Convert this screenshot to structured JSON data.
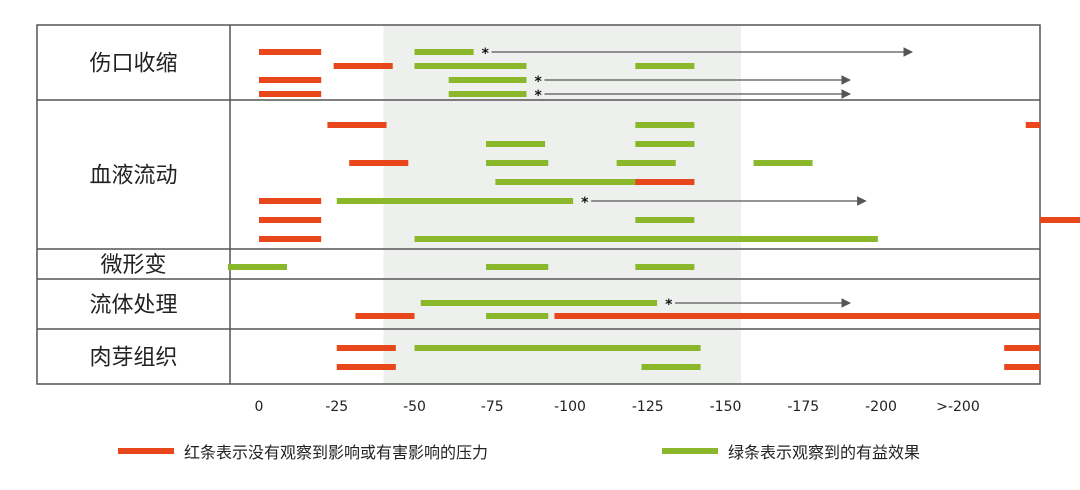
{
  "chart_data": {
    "type": "range-bar",
    "x_axis": {
      "tick_values": [
        0,
        -25,
        -50,
        -75,
        -100,
        -125,
        -150,
        -175,
        -200,
        -225
      ],
      "tick_labels": [
        "0",
        "-25",
        "-50",
        "-75",
        "-100",
        "-125",
        "-150",
        "-175",
        "-200",
        ">-200"
      ],
      "range": [
        10,
        -265
      ]
    },
    "shaded_x_range": [
      -40,
      -155
    ],
    "categories": [
      {
        "name": "伤口收缩",
        "rows": 4
      },
      {
        "name": "血液流动",
        "rows": 8
      },
      {
        "name": "微形变",
        "rows": 1
      },
      {
        "name": "流体处理",
        "rows": 2
      },
      {
        "name": "肉芽组织",
        "rows": 2
      }
    ],
    "series": [
      {
        "name": "红条表示没有观察到影响或有害影响的压力",
        "color": "#e8471c"
      },
      {
        "name": "绿条表示观察到的有益效果",
        "color": "#8ab82a"
      }
    ],
    "bars": [
      {
        "cat": 0,
        "row": 0,
        "series": 0,
        "x0": 0,
        "x1": -20
      },
      {
        "cat": 0,
        "row": 2,
        "series": 0,
        "x0": 0,
        "x1": -20
      },
      {
        "cat": 0,
        "row": 3,
        "series": 0,
        "x0": 0,
        "x1": -20
      },
      {
        "cat": 0,
        "row": 1,
        "series": 0,
        "x0": -24,
        "x1": -43
      },
      {
        "cat": 0,
        "row": 0,
        "series": 1,
        "x0": -50,
        "x1": -69
      },
      {
        "cat": 0,
        "row": 1,
        "series": 1,
        "x0": -50,
        "x1": -86
      },
      {
        "cat": 0,
        "row": 2,
        "series": 1,
        "x0": -61,
        "x1": -86
      },
      {
        "cat": 0,
        "row": 3,
        "series": 1,
        "x0": -61,
        "x1": -86
      },
      {
        "cat": 0,
        "row": 1,
        "series": 1,
        "x0": -121,
        "x1": -140
      },
      {
        "cat": 1,
        "row": 0,
        "series": 0,
        "x0": -22,
        "x1": -41
      },
      {
        "cat": 1,
        "row": 0,
        "series": 1,
        "x0": -121,
        "x1": -140
      },
      {
        "cat": 1,
        "row": 0,
        "series": 0,
        "x0": -247,
        "x1": -266
      },
      {
        "cat": 1,
        "row": 1,
        "series": 1,
        "x0": -73,
        "x1": -92
      },
      {
        "cat": 1,
        "row": 1,
        "series": 1,
        "x0": -121,
        "x1": -140
      },
      {
        "cat": 1,
        "row": 2,
        "series": 0,
        "x0": -29,
        "x1": -48
      },
      {
        "cat": 1,
        "row": 2,
        "series": 1,
        "x0": -73,
        "x1": -93
      },
      {
        "cat": 1,
        "row": 2,
        "series": 1,
        "x0": -115,
        "x1": -134
      },
      {
        "cat": 1,
        "row": 2,
        "series": 1,
        "x0": -159,
        "x1": -178
      },
      {
        "cat": 1,
        "row": 3,
        "series": 1,
        "x0": -76,
        "x1": -124
      },
      {
        "cat": 1,
        "row": 3,
        "series": 0,
        "x0": -121,
        "x1": -140
      },
      {
        "cat": 1,
        "row": 4,
        "series": 0,
        "x0": 0,
        "x1": -20
      },
      {
        "cat": 1,
        "row": 4,
        "series": 1,
        "x0": -25,
        "x1": -101
      },
      {
        "cat": 1,
        "row": 5,
        "series": 0,
        "x0": 0,
        "x1": -20
      },
      {
        "cat": 1,
        "row": 5,
        "series": 1,
        "x0": -121,
        "x1": -140
      },
      {
        "cat": 1,
        "row": 5,
        "series": 0,
        "x0": -266,
        "x1": -285
      },
      {
        "cat": 1,
        "row": 6,
        "series": 0,
        "x0": 0,
        "x1": -20
      },
      {
        "cat": 1,
        "row": 6,
        "series": 1,
        "x0": -50,
        "x1": -199
      },
      {
        "cat": 2,
        "row": 0,
        "series": 1,
        "x0": 10,
        "x1": -9
      },
      {
        "cat": 2,
        "row": 0,
        "series": 1,
        "x0": -73,
        "x1": -93
      },
      {
        "cat": 2,
        "row": 0,
        "series": 1,
        "x0": -121,
        "x1": -140
      },
      {
        "cat": 3,
        "row": 0,
        "series": 1,
        "x0": -52,
        "x1": -128
      },
      {
        "cat": 3,
        "row": 1,
        "series": 0,
        "x0": -31,
        "x1": -50
      },
      {
        "cat": 3,
        "row": 1,
        "series": 1,
        "x0": -73,
        "x1": -93
      },
      {
        "cat": 3,
        "row": 1,
        "series": 0,
        "x0": -95,
        "x1": -294
      },
      {
        "cat": 4,
        "row": 0,
        "series": 0,
        "x0": -25,
        "x1": -44
      },
      {
        "cat": 4,
        "row": 0,
        "series": 1,
        "x0": -123,
        "x1": -142
      },
      {
        "cat": 4,
        "row": 0,
        "series": 0,
        "x0": -240,
        "x1": -259
      },
      {
        "cat": 4,
        "row": 0,
        "series": 1,
        "x0": -50,
        "x1": -128
      },
      {
        "cat": 4,
        "row": 1,
        "series": 0,
        "x0": -25,
        "x1": -44
      },
      {
        "cat": 4,
        "row": 1,
        "series": 1,
        "x0": -123,
        "x1": -142
      },
      {
        "cat": 4,
        "row": 1,
        "series": 0,
        "x0": -240,
        "x1": -259
      }
    ],
    "extensions": [
      {
        "cat": 0,
        "row": 0,
        "from": -69,
        "to": -210
      },
      {
        "cat": 0,
        "row": 2,
        "from": -86,
        "to": -190
      },
      {
        "cat": 0,
        "row": 3,
        "from": -86,
        "to": -190
      },
      {
        "cat": 1,
        "row": 4,
        "from": -101,
        "to": -195
      },
      {
        "cat": 3,
        "row": 0,
        "from": -128,
        "to": -190
      }
    ],
    "extension_marker": "*",
    "legend_position": "bottom"
  }
}
